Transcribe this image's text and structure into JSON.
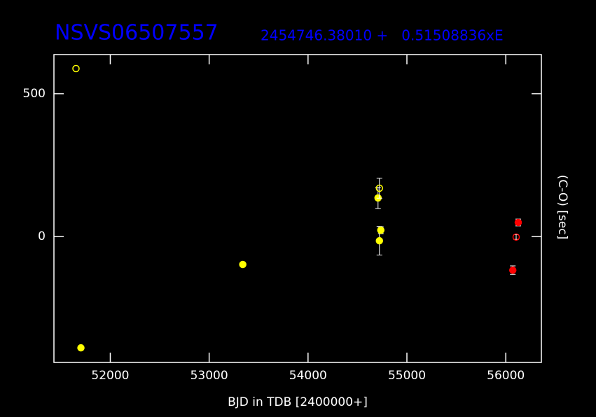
{
  "chart_data": {
    "type": "scatter",
    "title": "NSVS06507557",
    "subtitle": "2454746.38010 +   0.51508836xE",
    "xlabel": "BJD in TDB [2400000+]",
    "ylabel": "(C-O) [sec]",
    "xlim": [
      51430,
      56360
    ],
    "ylim": [
      -441,
      637
    ],
    "xticks": [
      52000,
      53000,
      54000,
      55000,
      56000
    ],
    "yticks": [
      0,
      500
    ],
    "series": [
      {
        "color": "#ffff00",
        "x": [
          51653,
          51703,
          53340,
          54708,
          54722,
          54722,
          54736
        ],
        "values": [
          588,
          -390,
          -98,
          135,
          169,
          -15,
          22
        ],
        "errors": [
          0,
          0,
          0,
          37,
          35,
          50,
          12
        ],
        "filled": [
          false,
          true,
          true,
          true,
          false,
          true,
          true
        ]
      },
      {
        "color": "#ff0000",
        "x": [
          56071,
          56105,
          56126
        ],
        "values": [
          -118,
          -2,
          49
        ],
        "errors": [
          15,
          8,
          12
        ],
        "filled": [
          true,
          false,
          true
        ]
      }
    ]
  }
}
